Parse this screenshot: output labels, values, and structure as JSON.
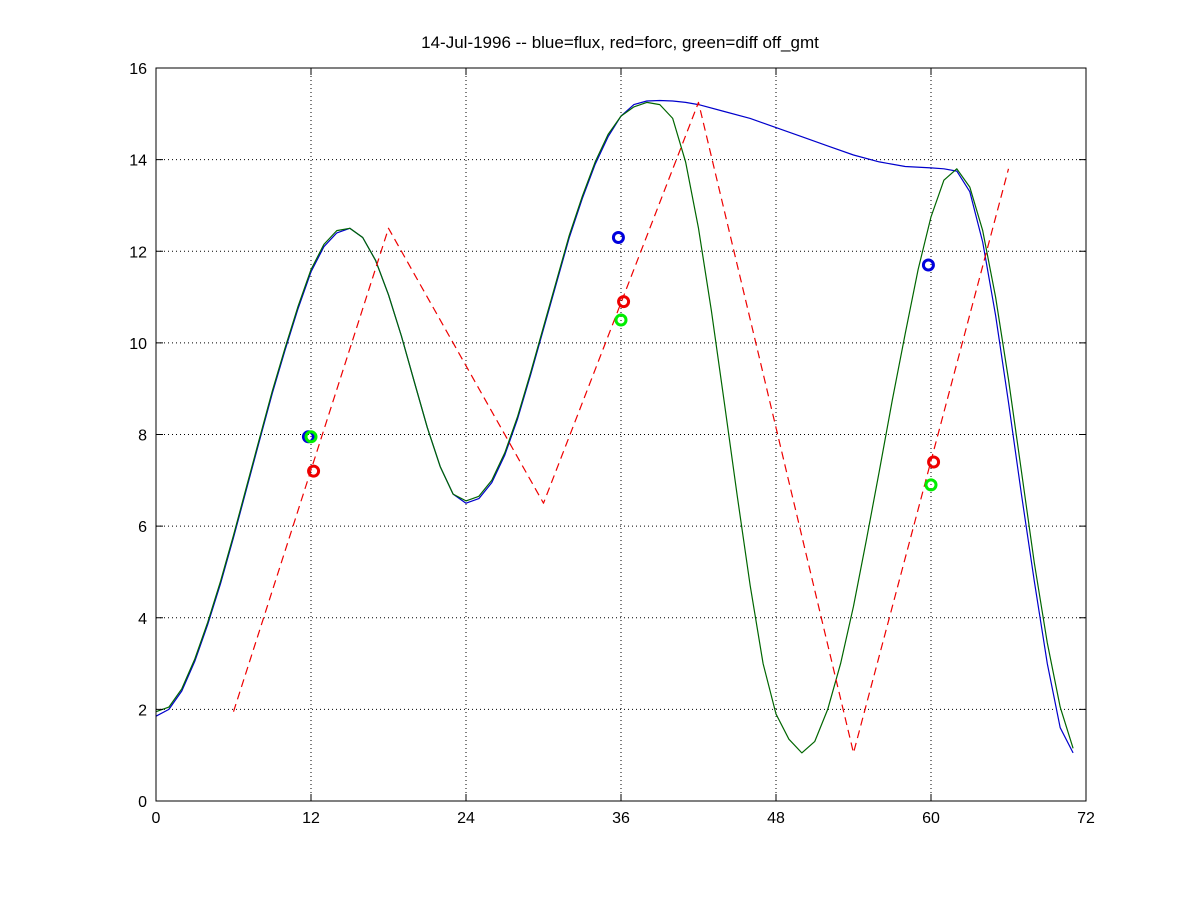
{
  "chart_data": {
    "type": "line",
    "title": "14-Jul-1996 -- blue=flux, red=forc, green=diff off_gmt",
    "xlabel": "",
    "ylabel": "",
    "xlim": [
      0,
      72
    ],
    "ylim": [
      0,
      16
    ],
    "xticks": [
      0,
      12,
      24,
      36,
      48,
      60,
      72
    ],
    "xtick_labels": [
      "0",
      "12",
      "24",
      "36",
      "48",
      "60",
      "72"
    ],
    "yticks": [
      0,
      2,
      4,
      6,
      8,
      10,
      12,
      14,
      16
    ],
    "ytick_labels": [
      "0",
      "2",
      "4",
      "6",
      "8",
      "10",
      "12",
      "14",
      "16"
    ],
    "grid": true,
    "grid_style": "dotted",
    "series": [
      {
        "color": "#0000cc",
        "style": "solid",
        "x": [
          0,
          1,
          2,
          3,
          4,
          5,
          6,
          7,
          8,
          9,
          10,
          11,
          12,
          13,
          14,
          15,
          16,
          17,
          18,
          19,
          20,
          21,
          22,
          23,
          24,
          25,
          26,
          27,
          28,
          29,
          30,
          31,
          32,
          33,
          34,
          35,
          36,
          37,
          38,
          39,
          40,
          41,
          42,
          44,
          46,
          48,
          50,
          52,
          54,
          56,
          58,
          60,
          61,
          62,
          63,
          64,
          65,
          66,
          67,
          68,
          69,
          70,
          71
        ],
        "y": [
          1.85,
          2.0,
          2.4,
          3.05,
          3.85,
          4.75,
          5.75,
          6.8,
          7.85,
          8.9,
          9.85,
          10.75,
          11.55,
          12.1,
          12.4,
          12.5,
          12.3,
          11.8,
          11.05,
          10.15,
          9.15,
          8.15,
          7.3,
          6.7,
          6.5,
          6.6,
          6.95,
          7.55,
          8.35,
          9.3,
          10.3,
          11.3,
          12.3,
          13.15,
          13.9,
          14.5,
          14.95,
          15.2,
          15.28,
          15.29,
          15.28,
          15.25,
          15.2,
          15.05,
          14.9,
          14.7,
          14.5,
          14.3,
          14.1,
          13.95,
          13.85,
          13.82,
          13.8,
          13.75,
          13.3,
          12.2,
          10.6,
          8.7,
          6.7,
          4.8,
          3.0,
          1.6,
          1.05
        ]
      },
      {
        "color": "#006600",
        "style": "solid",
        "x": [
          0,
          1,
          2,
          3,
          4,
          5,
          6,
          7,
          8,
          9,
          10,
          11,
          12,
          13,
          14,
          15,
          16,
          17,
          18,
          19,
          20,
          21,
          22,
          23,
          24,
          25,
          26,
          27,
          28,
          29,
          30,
          31,
          32,
          33,
          34,
          35,
          36,
          37,
          38,
          39,
          40,
          41,
          42,
          43,
          44,
          45,
          46,
          47,
          48,
          49,
          50,
          51,
          52,
          53,
          54,
          55,
          56,
          57,
          58,
          59,
          60,
          61,
          62,
          63,
          64,
          65,
          66,
          67,
          68,
          69,
          70,
          71
        ],
        "y": [
          1.95,
          2.05,
          2.45,
          3.1,
          3.9,
          4.8,
          5.8,
          6.85,
          7.9,
          8.95,
          9.9,
          10.8,
          11.6,
          12.15,
          12.45,
          12.5,
          12.3,
          11.8,
          11.05,
          10.15,
          9.15,
          8.15,
          7.3,
          6.7,
          6.55,
          6.65,
          7.0,
          7.6,
          8.4,
          9.35,
          10.35,
          11.35,
          12.35,
          13.2,
          13.95,
          14.55,
          14.95,
          15.15,
          15.25,
          15.2,
          14.9,
          13.95,
          12.5,
          10.7,
          8.7,
          6.65,
          4.7,
          3.0,
          1.9,
          1.35,
          1.05,
          1.3,
          2.0,
          3.0,
          4.25,
          5.7,
          7.2,
          8.75,
          10.2,
          11.6,
          12.75,
          13.55,
          13.8,
          13.4,
          12.45,
          11.0,
          9.2,
          7.2,
          5.2,
          3.45,
          2.05,
          1.15
        ]
      },
      {
        "color": "#ee0000",
        "style": "dashed",
        "x": [
          6,
          18,
          30,
          42,
          54,
          66
        ],
        "y": [
          1.95,
          12.5,
          6.5,
          15.25,
          1.05,
          13.8
        ]
      }
    ],
    "markers": [
      {
        "color": "#0000dd",
        "points": [
          {
            "x": 11.8,
            "y": 7.95
          },
          {
            "x": 35.8,
            "y": 12.3
          },
          {
            "x": 59.8,
            "y": 11.7
          }
        ]
      },
      {
        "color": "#ee0000",
        "points": [
          {
            "x": 12.2,
            "y": 7.2
          },
          {
            "x": 36.2,
            "y": 10.9
          },
          {
            "x": 60.2,
            "y": 7.4
          }
        ]
      },
      {
        "color": "#00ee00",
        "points": [
          {
            "x": 12.0,
            "y": 7.95
          },
          {
            "x": 36.0,
            "y": 10.5
          },
          {
            "x": 60.0,
            "y": 6.9
          }
        ]
      }
    ]
  }
}
